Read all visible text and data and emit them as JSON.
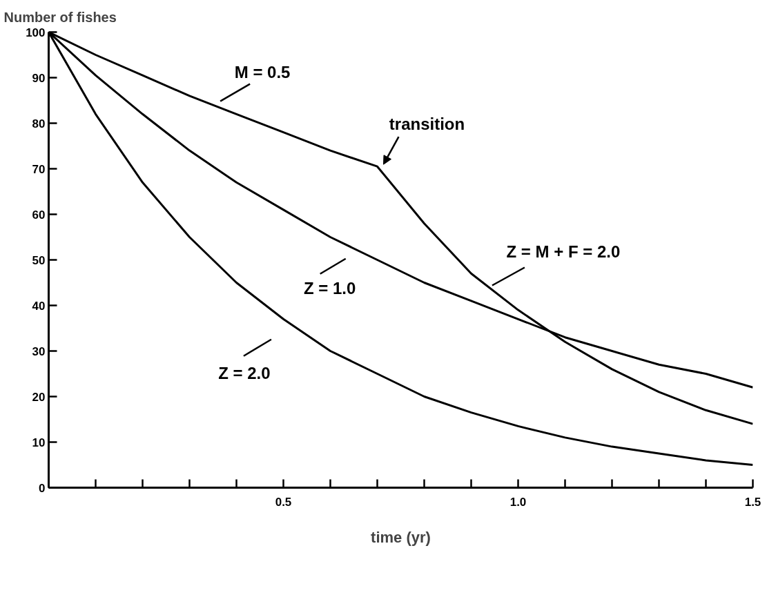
{
  "chart_data": {
    "type": "line",
    "ylabel": "Number of fishes",
    "xlabel": "time (yr)",
    "x": [
      0,
      0.1,
      0.2,
      0.3,
      0.4,
      0.5,
      0.6,
      0.7,
      0.8,
      0.9,
      1.0,
      1.1,
      1.2,
      1.3,
      1.4,
      1.5
    ],
    "series": [
      {
        "color": "#000000",
        "values": [
          100,
          95,
          90.5,
          86,
          82,
          78,
          74,
          70.5,
          58,
          47,
          39,
          32,
          26,
          21,
          17,
          14
        ]
      },
      {
        "color": "#000000",
        "values": [
          100,
          90.5,
          82,
          74,
          67,
          61,
          55,
          50,
          45,
          41,
          37,
          33,
          30,
          27,
          25,
          22
        ]
      },
      {
        "color": "#000000",
        "values": [
          100,
          82,
          67,
          55,
          45,
          37,
          30,
          25,
          20,
          16.5,
          13.5,
          11,
          9,
          7.5,
          6,
          5
        ]
      }
    ],
    "annotations": [
      {
        "text": "M = 0.5",
        "x": 0.37,
        "y": 83
      },
      {
        "text": "transition",
        "x": 0.7,
        "y": 70.5
      },
      {
        "text": "Z = M + F = 2.0",
        "x": 0.93,
        "y": 45
      },
      {
        "text": "Z = 1.0",
        "x": 0.64,
        "y": 53
      },
      {
        "text": "Z = 2.0",
        "x": 0.48,
        "y": 38
      }
    ],
    "xlim": [
      0,
      1.5
    ],
    "ylim": [
      0,
      100
    ],
    "xticks": [
      {
        "value": 0,
        "label": null
      },
      {
        "value": 0.1,
        "label": null
      },
      {
        "value": 0.2,
        "label": null
      },
      {
        "value": 0.3,
        "label": null
      },
      {
        "value": 0.4,
        "label": null
      },
      0.5,
      {
        "value": 0.6,
        "label": null
      },
      {
        "value": 0.7,
        "label": null
      },
      {
        "value": 0.8,
        "label": null
      },
      {
        "value": 0.9,
        "label": null
      },
      {
        "value": 1.0,
        "label": "1.0"
      },
      {
        "value": 1.1,
        "label": null
      },
      {
        "value": 1.2,
        "label": null
      },
      {
        "value": 1.3,
        "label": null
      },
      {
        "value": 1.4,
        "label": null
      },
      1.5
    ],
    "yticks": [
      0,
      10,
      20,
      30,
      40,
      50,
      60,
      70,
      80,
      90,
      100
    ],
    "grid": false,
    "marker": "none",
    "line_style": "solid"
  }
}
